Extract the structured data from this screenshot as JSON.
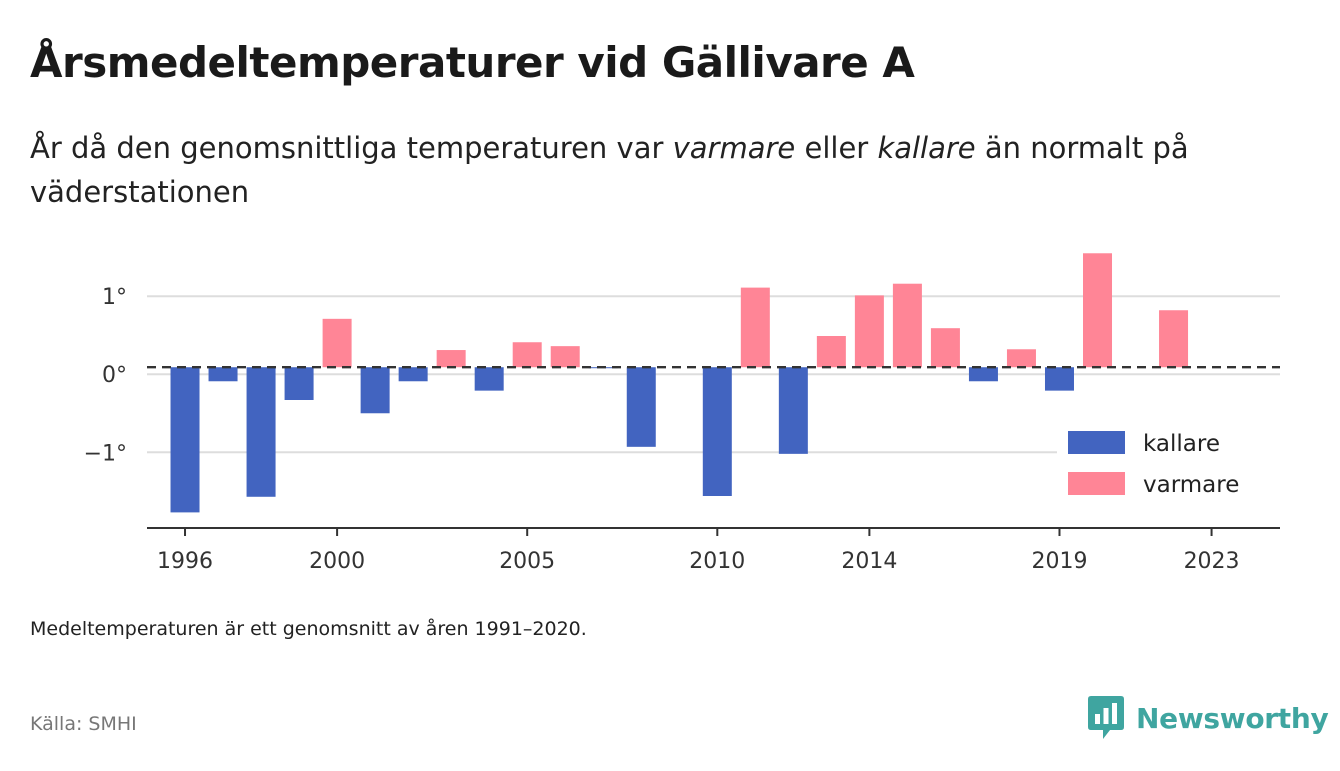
{
  "title": "Årsmedeltemperaturer vid Gällivare A",
  "subtitle": {
    "part1": "År då den genomsnittliga temperaturen var ",
    "warmer_word": "varmare",
    "part2": " eller ",
    "colder_word": "kallare",
    "part3": " än normalt på väderstationen"
  },
  "note": "Medeltemperaturen är ett genomsnitt av åren 1991–2020.",
  "source": "Källa: SMHI",
  "brand": {
    "name": "Newsworthy",
    "icon": "newsworthy-logo-icon",
    "color": "#3fa5a0"
  },
  "colors": {
    "kallare": "#4264c0",
    "varmare": "#ff8596",
    "reference": "#333333"
  },
  "chart_data": {
    "type": "bar",
    "x": [
      1996,
      1997,
      1998,
      1999,
      2000,
      2001,
      2002,
      2003,
      2004,
      2005,
      2006,
      2007,
      2008,
      2009,
      2010,
      2011,
      2012,
      2013,
      2014,
      2015,
      2016,
      2017,
      2018,
      2019,
      2020,
      2021,
      2022
    ],
    "values": [
      -1.77,
      -0.09,
      -1.57,
      -0.33,
      0.71,
      -0.5,
      -0.09,
      0.31,
      -0.21,
      0.41,
      0.36,
      0.09,
      -0.93,
      0.0,
      -1.56,
      1.11,
      -1.02,
      0.49,
      1.01,
      1.16,
      0.59,
      -0.09,
      0.32,
      -0.21,
      1.55,
      0.0,
      0.82
    ],
    "reference": 0.09,
    "series": [
      {
        "name": "kallare",
        "color": "#4264c0"
      },
      {
        "name": "varmare",
        "color": "#ff8596"
      }
    ],
    "xticks": [
      "1996",
      "2000",
      "2005",
      "2010",
      "2014",
      "2019",
      "2023"
    ],
    "yticks": [
      "−1°",
      "0°",
      "1°"
    ],
    "ylim": [
      -1.97,
      1.72
    ],
    "xlim": [
      1995,
      2024.8
    ],
    "grid": true,
    "legend_position": "bottom-right"
  }
}
